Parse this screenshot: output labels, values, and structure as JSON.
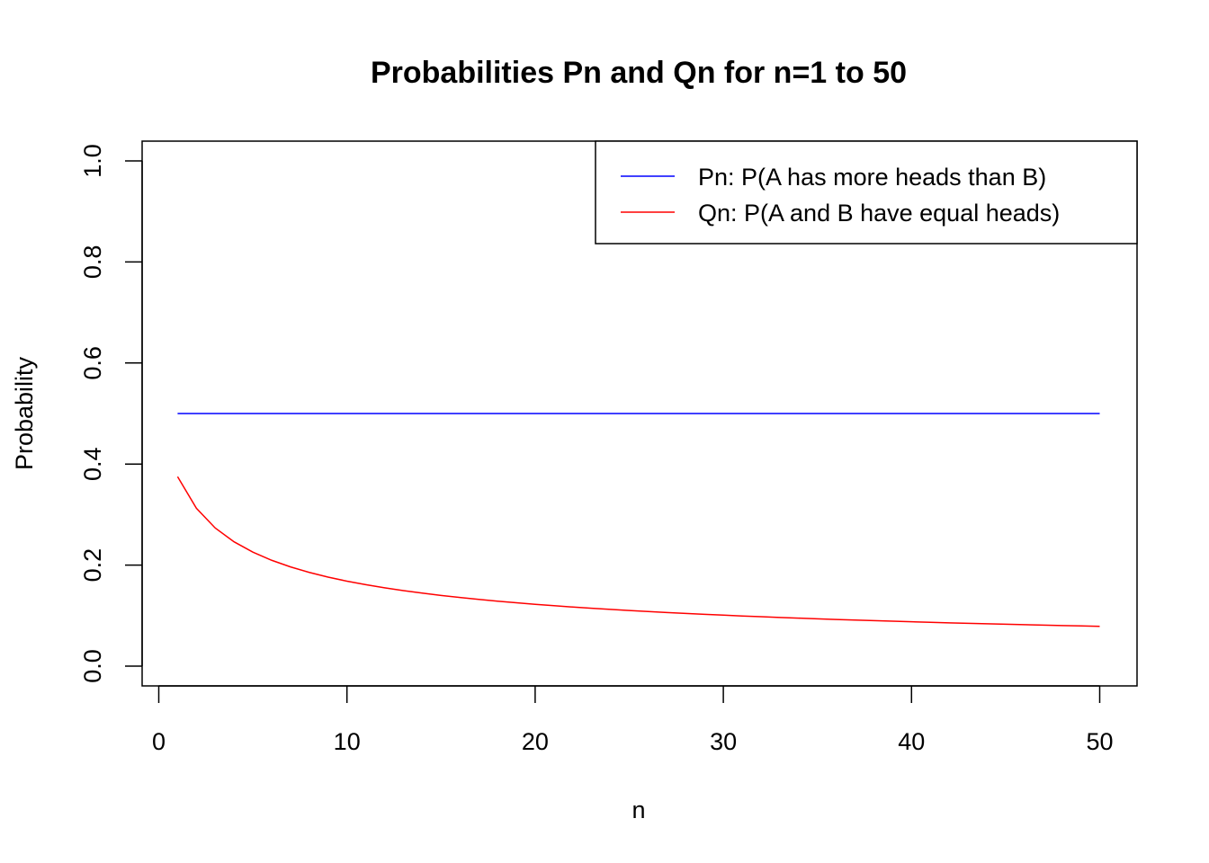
{
  "chart_data": {
    "type": "line",
    "title": "Probabilities Pn and Qn for n=1 to 50",
    "xlabel": "n",
    "ylabel": "Probability",
    "xlim": [
      0,
      50
    ],
    "ylim": [
      0,
      1
    ],
    "x_ticks": [
      0,
      10,
      20,
      30,
      40,
      50
    ],
    "y_ticks": [
      0.0,
      0.2,
      0.4,
      0.6,
      0.8,
      1.0
    ],
    "x_tick_labels": [
      "0",
      "10",
      "20",
      "30",
      "40",
      "50"
    ],
    "y_tick_labels": [
      "0.0",
      "0.2",
      "0.4",
      "0.6",
      "0.8",
      "1.0"
    ],
    "grid": false,
    "legend_position": "top-right",
    "x": [
      1,
      2,
      3,
      4,
      5,
      6,
      7,
      8,
      9,
      10,
      11,
      12,
      13,
      14,
      15,
      16,
      17,
      18,
      19,
      20,
      21,
      22,
      23,
      24,
      25,
      26,
      27,
      28,
      29,
      30,
      31,
      32,
      33,
      34,
      35,
      36,
      37,
      38,
      39,
      40,
      41,
      42,
      43,
      44,
      45,
      46,
      47,
      48,
      49,
      50
    ],
    "series": [
      {
        "name": "Pn: P(A has more heads than B)",
        "color": "#0000ff",
        "values": [
          0.5,
          0.5,
          0.5,
          0.5,
          0.5,
          0.5,
          0.5,
          0.5,
          0.5,
          0.5,
          0.5,
          0.5,
          0.5,
          0.5,
          0.5,
          0.5,
          0.5,
          0.5,
          0.5,
          0.5,
          0.5,
          0.5,
          0.5,
          0.5,
          0.5,
          0.5,
          0.5,
          0.5,
          0.5,
          0.5,
          0.5,
          0.5,
          0.5,
          0.5,
          0.5,
          0.5,
          0.5,
          0.5,
          0.5,
          0.5,
          0.5,
          0.5,
          0.5,
          0.5,
          0.5,
          0.5,
          0.5,
          0.5,
          0.5,
          0.5
        ]
      },
      {
        "name": "Qn: P(A and B have equal heads)",
        "color": "#ff0000",
        "values": [
          0.375,
          0.3125,
          0.2734,
          0.2461,
          0.2256,
          0.2095,
          0.1964,
          0.1855,
          0.1762,
          0.1682,
          0.1612,
          0.155,
          0.1494,
          0.1445,
          0.14,
          0.1359,
          0.1321,
          0.1286,
          0.1254,
          0.1224,
          0.1196,
          0.117,
          0.1146,
          0.1123,
          0.1101,
          0.1081,
          0.1061,
          0.1043,
          0.1026,
          0.1009,
          0.0993,
          0.0978,
          0.0964,
          0.095,
          0.0937,
          0.0924,
          0.0912,
          0.09,
          0.0889,
          0.0878,
          0.0867,
          0.0857,
          0.0848,
          0.0838,
          0.0829,
          0.082,
          0.0812,
          0.0804,
          0.0796,
          0.0788
        ]
      }
    ]
  }
}
